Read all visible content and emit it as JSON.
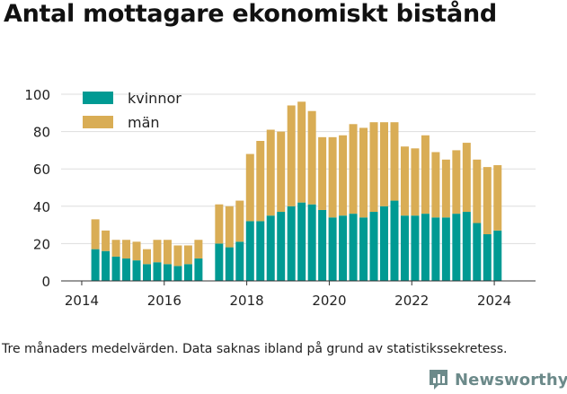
{
  "header": {
    "title": "Antal mottagare ekonomiskt bistånd"
  },
  "footer": {
    "caption": "Tre månaders medelvärden. Data saknas ibland på grund av statistikssekretess.",
    "brand": "Newsworthy",
    "brand_icon": "bar-chart-logo-icon"
  },
  "colors": {
    "kvinnor": "#009a93",
    "man": "#d9ad55",
    "gridline": "#dddddd",
    "text": "#222222"
  },
  "chart_data": {
    "type": "bar",
    "stacked": true,
    "title": "Antal mottagare ekonomiskt bistånd",
    "xlim": [
      2013.5,
      2025.0
    ],
    "ylim": [
      0,
      100
    ],
    "x_ticks": [
      2014,
      2016,
      2018,
      2020,
      2022,
      2024
    ],
    "y_ticks": [
      0,
      20,
      40,
      60,
      80,
      100
    ],
    "grid": true,
    "legend_position": "top-left",
    "x": [
      2014.33,
      2014.58,
      2014.83,
      2015.08,
      2015.33,
      2015.58,
      2015.83,
      2016.08,
      2016.33,
      2016.58,
      2016.83,
      2017.33,
      2017.58,
      2017.83,
      2018.08,
      2018.33,
      2018.58,
      2018.83,
      2019.08,
      2019.33,
      2019.58,
      2019.83,
      2020.08,
      2020.33,
      2020.58,
      2020.83,
      2021.08,
      2021.33,
      2021.58,
      2021.83,
      2022.08,
      2022.33,
      2022.58,
      2022.83,
      2023.08,
      2023.33,
      2023.58,
      2023.83,
      2024.08
    ],
    "series": [
      {
        "name": "kvinnor",
        "values": [
          17,
          16,
          13,
          12,
          11,
          9,
          10,
          9,
          8,
          9,
          12,
          20,
          18,
          21,
          32,
          32,
          35,
          37,
          40,
          42,
          41,
          38,
          34,
          35,
          36,
          34,
          37,
          40,
          43,
          35,
          35,
          36,
          34,
          34,
          36,
          37,
          31,
          25,
          27
        ]
      },
      {
        "name": "män",
        "values": [
          16,
          11,
          9,
          10,
          10,
          8,
          12,
          13,
          11,
          10,
          10,
          21,
          22,
          22,
          36,
          43,
          46,
          43,
          54,
          54,
          50,
          39,
          43,
          43,
          48,
          48,
          48,
          45,
          42,
          37,
          36,
          42,
          35,
          31,
          34,
          37,
          34,
          36,
          35
        ]
      }
    ]
  }
}
